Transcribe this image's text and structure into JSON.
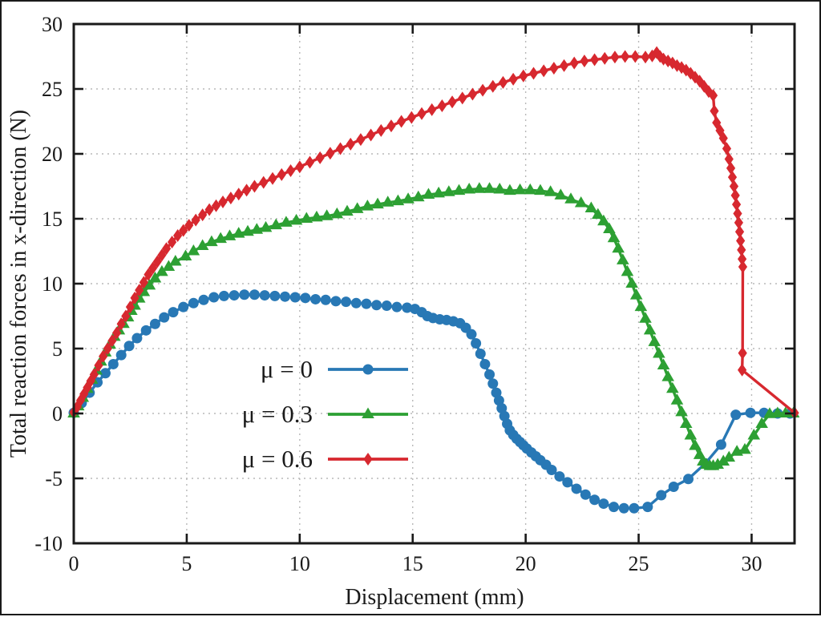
{
  "chart_data": {
    "type": "line",
    "title": "",
    "xlabel": "Displacement (mm)",
    "ylabel": "Total reaction forces in x-direction (N)",
    "xlim": [
      0,
      31.9
    ],
    "ylim": [
      -10,
      30
    ],
    "xticks": [
      0,
      5,
      10,
      15,
      20,
      25,
      30
    ],
    "yticks": [
      -10,
      -5,
      0,
      5,
      10,
      15,
      20,
      25,
      30
    ],
    "grid": true,
    "grid_color": "#b8b8b8",
    "frame_color": "#1a1a1a",
    "legend_position": "inside lower-left",
    "series": [
      {
        "name": "μ = 0",
        "color": "#2878b5",
        "marker": "circle",
        "points": [
          [
            0,
            0.05
          ],
          [
            0.35,
            0.8
          ],
          [
            0.7,
            1.6
          ],
          [
            1.05,
            2.4
          ],
          [
            1.4,
            3.1
          ],
          [
            1.75,
            3.8
          ],
          [
            2.1,
            4.5
          ],
          [
            2.45,
            5.2
          ],
          [
            2.8,
            5.8
          ],
          [
            3.2,
            6.4
          ],
          [
            3.6,
            6.9
          ],
          [
            4.0,
            7.4
          ],
          [
            4.4,
            7.8
          ],
          [
            4.85,
            8.2
          ],
          [
            5.3,
            8.5
          ],
          [
            5.75,
            8.75
          ],
          [
            6.2,
            8.95
          ],
          [
            6.65,
            9.05
          ],
          [
            7.1,
            9.1
          ],
          [
            7.55,
            9.15
          ],
          [
            8.0,
            9.15
          ],
          [
            8.45,
            9.1
          ],
          [
            8.9,
            9.05
          ],
          [
            9.35,
            9.0
          ],
          [
            9.8,
            8.95
          ],
          [
            10.25,
            8.9
          ],
          [
            10.7,
            8.8
          ],
          [
            11.15,
            8.75
          ],
          [
            11.6,
            8.65
          ],
          [
            12.05,
            8.6
          ],
          [
            12.5,
            8.5
          ],
          [
            12.95,
            8.45
          ],
          [
            13.4,
            8.35
          ],
          [
            13.85,
            8.3
          ],
          [
            14.3,
            8.2
          ],
          [
            14.75,
            8.15
          ],
          [
            15.1,
            8.05
          ],
          [
            15.4,
            7.8
          ],
          [
            15.65,
            7.5
          ],
          [
            15.9,
            7.35
          ],
          [
            16.2,
            7.25
          ],
          [
            16.5,
            7.2
          ],
          [
            16.8,
            7.1
          ],
          [
            17.1,
            6.95
          ],
          [
            17.35,
            6.6
          ],
          [
            17.6,
            6.1
          ],
          [
            17.8,
            5.4
          ],
          [
            18.0,
            4.6
          ],
          [
            18.2,
            3.8
          ],
          [
            18.4,
            3.0
          ],
          [
            18.55,
            2.3
          ],
          [
            18.7,
            1.6
          ],
          [
            18.82,
            1.0
          ],
          [
            18.94,
            0.4
          ],
          [
            19.06,
            -0.2
          ],
          [
            19.18,
            -0.8
          ],
          [
            19.3,
            -1.3
          ],
          [
            19.45,
            -1.65
          ],
          [
            19.6,
            -1.95
          ],
          [
            19.75,
            -2.2
          ],
          [
            19.9,
            -2.45
          ],
          [
            20.05,
            -2.7
          ],
          [
            20.25,
            -3.0
          ],
          [
            20.45,
            -3.3
          ],
          [
            20.65,
            -3.6
          ],
          [
            20.9,
            -3.95
          ],
          [
            21.15,
            -4.35
          ],
          [
            21.5,
            -4.85
          ],
          [
            21.85,
            -5.3
          ],
          [
            22.25,
            -5.8
          ],
          [
            22.65,
            -6.25
          ],
          [
            23.05,
            -6.65
          ],
          [
            23.45,
            -6.95
          ],
          [
            23.9,
            -7.2
          ],
          [
            24.35,
            -7.3
          ],
          [
            24.8,
            -7.3
          ],
          [
            25.4,
            -7.2
          ],
          [
            26.0,
            -6.3
          ],
          [
            26.55,
            -5.65
          ],
          [
            27.2,
            -5.05
          ],
          [
            27.95,
            -3.85
          ],
          [
            28.65,
            -2.4
          ],
          [
            29.3,
            -0.1
          ],
          [
            29.95,
            0.05
          ],
          [
            30.55,
            0.05
          ],
          [
            31.15,
            0
          ],
          [
            31.7,
            0
          ]
        ]
      },
      {
        "name": "μ = 0.3",
        "color": "#2da033",
        "marker": "triangle",
        "points": [
          [
            0,
            0
          ],
          [
            0.2,
            0.55
          ],
          [
            0.4,
            1.2
          ],
          [
            0.6,
            1.9
          ],
          [
            0.8,
            2.6
          ],
          [
            1.0,
            3.3
          ],
          [
            1.2,
            4.0
          ],
          [
            1.4,
            4.7
          ],
          [
            1.6,
            5.3
          ],
          [
            1.8,
            5.9
          ],
          [
            2.0,
            6.4
          ],
          [
            2.2,
            6.9
          ],
          [
            2.4,
            7.4
          ],
          [
            2.55,
            7.9
          ],
          [
            2.7,
            8.3
          ],
          [
            2.9,
            8.85
          ],
          [
            3.1,
            9.35
          ],
          [
            3.35,
            9.85
          ],
          [
            3.6,
            10.4
          ],
          [
            3.9,
            10.9
          ],
          [
            4.2,
            11.3
          ],
          [
            4.5,
            11.7
          ],
          [
            4.95,
            12.1
          ],
          [
            5.3,
            12.5
          ],
          [
            5.7,
            12.9
          ],
          [
            6.1,
            13.2
          ],
          [
            6.5,
            13.45
          ],
          [
            6.9,
            13.65
          ],
          [
            7.3,
            13.85
          ],
          [
            7.7,
            14.0
          ],
          [
            8.1,
            14.15
          ],
          [
            8.5,
            14.3
          ],
          [
            8.95,
            14.5
          ],
          [
            9.4,
            14.7
          ],
          [
            9.85,
            14.85
          ],
          [
            10.3,
            15.0
          ],
          [
            10.75,
            15.1
          ],
          [
            11.2,
            15.2
          ],
          [
            11.65,
            15.35
          ],
          [
            12.1,
            15.55
          ],
          [
            12.55,
            15.75
          ],
          [
            13.0,
            15.95
          ],
          [
            13.45,
            16.1
          ],
          [
            13.9,
            16.25
          ],
          [
            14.35,
            16.35
          ],
          [
            14.8,
            16.5
          ],
          [
            15.25,
            16.65
          ],
          [
            15.7,
            16.85
          ],
          [
            16.15,
            16.95
          ],
          [
            16.6,
            17.05
          ],
          [
            17.05,
            17.15
          ],
          [
            17.5,
            17.25
          ],
          [
            17.95,
            17.3
          ],
          [
            18.4,
            17.3
          ],
          [
            18.85,
            17.25
          ],
          [
            19.3,
            17.15
          ],
          [
            19.75,
            17.2
          ],
          [
            20.2,
            17.2
          ],
          [
            20.65,
            17.15
          ],
          [
            21.1,
            17.05
          ],
          [
            21.55,
            16.8
          ],
          [
            22.0,
            16.5
          ],
          [
            22.45,
            16.2
          ],
          [
            22.9,
            15.8
          ],
          [
            23.2,
            15.3
          ],
          [
            23.45,
            14.8
          ],
          [
            23.7,
            14.2
          ],
          [
            23.9,
            13.5
          ],
          [
            24.1,
            12.7
          ],
          [
            24.3,
            11.8
          ],
          [
            24.5,
            10.9
          ],
          [
            24.7,
            10.0
          ],
          [
            24.9,
            9.1
          ],
          [
            25.1,
            8.2
          ],
          [
            25.3,
            7.3
          ],
          [
            25.5,
            6.4
          ],
          [
            25.7,
            5.5
          ],
          [
            25.9,
            4.6
          ],
          [
            26.1,
            3.7
          ],
          [
            26.3,
            2.8
          ],
          [
            26.5,
            1.9
          ],
          [
            26.7,
            1.0
          ],
          [
            26.9,
            0.1
          ],
          [
            27.1,
            -0.8
          ],
          [
            27.3,
            -1.7
          ],
          [
            27.5,
            -2.5
          ],
          [
            27.7,
            -3.2
          ],
          [
            27.85,
            -3.7
          ],
          [
            28.0,
            -3.95
          ],
          [
            28.15,
            -4.05
          ],
          [
            28.3,
            -4.05
          ],
          [
            28.5,
            -3.95
          ],
          [
            28.75,
            -3.7
          ],
          [
            29.0,
            -3.4
          ],
          [
            29.35,
            -2.95
          ],
          [
            29.7,
            -2.8
          ],
          [
            30.1,
            -1.7
          ],
          [
            30.45,
            -0.8
          ],
          [
            30.8,
            -0.05
          ],
          [
            31.15,
            0
          ],
          [
            31.5,
            0
          ],
          [
            31.85,
            0
          ]
        ]
      },
      {
        "name": "μ = 0.6",
        "color": "#d7282f",
        "marker": "diamond",
        "points": [
          [
            0,
            0.1
          ],
          [
            0.15,
            0.5
          ],
          [
            0.3,
            1.0
          ],
          [
            0.45,
            1.5
          ],
          [
            0.6,
            2.0
          ],
          [
            0.75,
            2.5
          ],
          [
            0.9,
            3.0
          ],
          [
            1.1,
            3.7
          ],
          [
            1.3,
            4.4
          ],
          [
            1.5,
            5.0
          ],
          [
            1.7,
            5.6
          ],
          [
            1.9,
            6.2
          ],
          [
            2.1,
            6.9
          ],
          [
            2.3,
            7.5
          ],
          [
            2.5,
            8.2
          ],
          [
            2.7,
            8.9
          ],
          [
            2.9,
            9.5
          ],
          [
            3.1,
            10.1
          ],
          [
            3.3,
            10.7
          ],
          [
            3.5,
            11.2
          ],
          [
            3.7,
            11.7
          ],
          [
            3.9,
            12.2
          ],
          [
            4.1,
            12.7
          ],
          [
            4.35,
            13.2
          ],
          [
            4.6,
            13.7
          ],
          [
            4.85,
            14.1
          ],
          [
            5.1,
            14.5
          ],
          [
            5.4,
            14.9
          ],
          [
            5.7,
            15.3
          ],
          [
            6.0,
            15.7
          ],
          [
            6.3,
            16.0
          ],
          [
            6.6,
            16.3
          ],
          [
            6.95,
            16.6
          ],
          [
            7.3,
            16.9
          ],
          [
            7.65,
            17.2
          ],
          [
            8.0,
            17.5
          ],
          [
            8.4,
            17.8
          ],
          [
            8.8,
            18.1
          ],
          [
            9.2,
            18.4
          ],
          [
            9.6,
            18.7
          ],
          [
            10.0,
            19.0
          ],
          [
            10.45,
            19.35
          ],
          [
            10.9,
            19.7
          ],
          [
            11.35,
            20.05
          ],
          [
            11.8,
            20.4
          ],
          [
            12.25,
            20.75
          ],
          [
            12.7,
            21.1
          ],
          [
            13.15,
            21.45
          ],
          [
            13.6,
            21.8
          ],
          [
            14.05,
            22.15
          ],
          [
            14.5,
            22.5
          ],
          [
            14.95,
            22.8
          ],
          [
            15.4,
            23.1
          ],
          [
            15.85,
            23.4
          ],
          [
            16.3,
            23.7
          ],
          [
            16.75,
            24.0
          ],
          [
            17.2,
            24.3
          ],
          [
            17.65,
            24.6
          ],
          [
            18.1,
            24.9
          ],
          [
            18.55,
            25.2
          ],
          [
            19.0,
            25.5
          ],
          [
            19.45,
            25.75
          ],
          [
            19.9,
            26.0
          ],
          [
            20.35,
            26.2
          ],
          [
            20.8,
            26.4
          ],
          [
            21.25,
            26.6
          ],
          [
            21.7,
            26.8
          ],
          [
            22.15,
            27.0
          ],
          [
            22.6,
            27.15
          ],
          [
            23.05,
            27.25
          ],
          [
            23.5,
            27.35
          ],
          [
            23.95,
            27.45
          ],
          [
            24.4,
            27.5
          ],
          [
            24.85,
            27.5
          ],
          [
            25.3,
            27.45
          ],
          [
            25.6,
            27.55
          ],
          [
            25.8,
            27.8
          ],
          [
            25.95,
            27.5
          ],
          [
            26.1,
            27.3
          ],
          [
            26.3,
            27.15
          ],
          [
            26.5,
            27.0
          ],
          [
            26.7,
            26.8
          ],
          [
            26.9,
            26.65
          ],
          [
            27.1,
            26.45
          ],
          [
            27.3,
            26.2
          ],
          [
            27.5,
            25.9
          ],
          [
            27.7,
            25.6
          ],
          [
            27.9,
            25.2
          ],
          [
            28.1,
            24.8
          ],
          [
            28.3,
            24.5
          ],
          [
            28.35,
            23.3
          ],
          [
            28.45,
            22.4
          ],
          [
            28.6,
            21.8
          ],
          [
            28.75,
            21.2
          ],
          [
            28.9,
            20.4
          ],
          [
            29.0,
            19.6
          ],
          [
            29.08,
            18.9
          ],
          [
            29.15,
            18.2
          ],
          [
            29.22,
            17.5
          ],
          [
            29.28,
            16.8
          ],
          [
            29.33,
            16.1
          ],
          [
            29.38,
            15.4
          ],
          [
            29.43,
            14.7
          ],
          [
            29.47,
            14.0
          ],
          [
            29.51,
            13.3
          ],
          [
            29.55,
            12.6
          ],
          [
            29.58,
            11.9
          ],
          [
            29.61,
            11.3
          ],
          [
            29.6,
            4.65
          ],
          [
            29.58,
            3.35
          ],
          [
            31.9,
            0.05
          ]
        ]
      }
    ],
    "legend_items": [
      {
        "label": "μ = 0"
      },
      {
        "label": "μ = 0.3"
      },
      {
        "label": "μ = 0.6"
      }
    ]
  }
}
